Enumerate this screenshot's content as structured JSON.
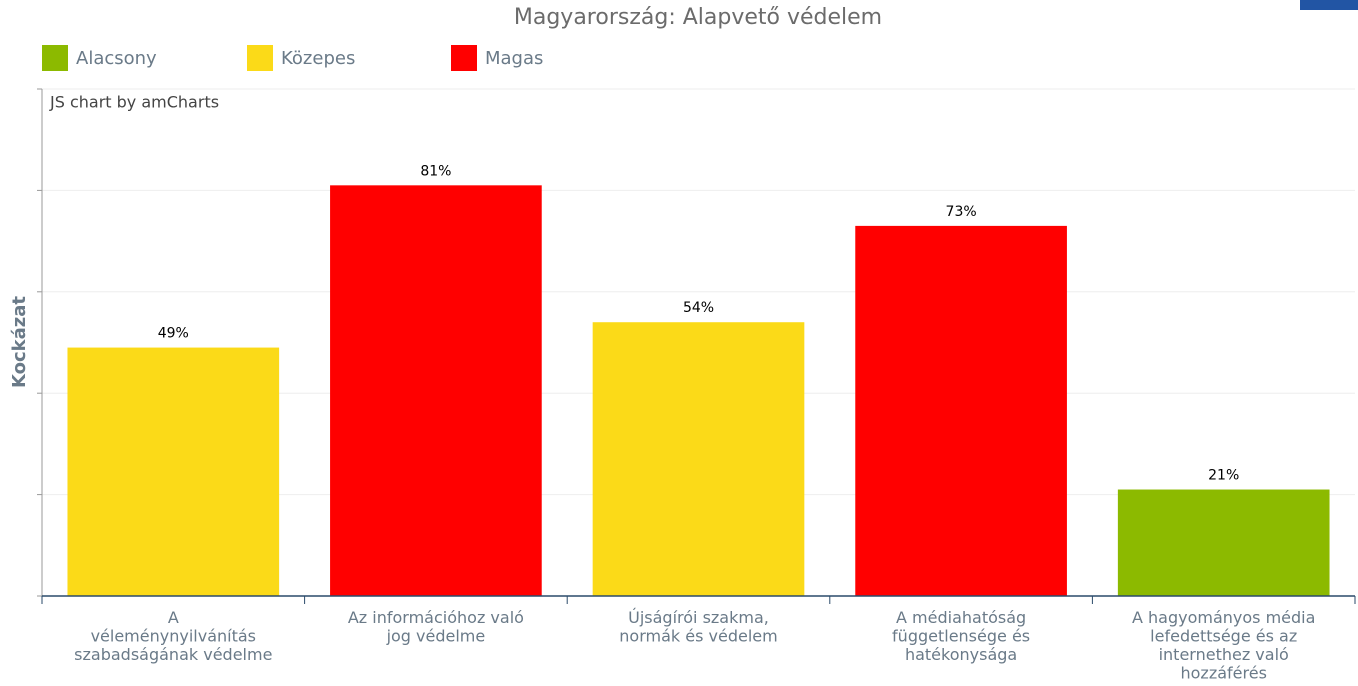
{
  "chart_data": {
    "type": "bar",
    "title": "Magyarország: Alapvető védelem",
    "credit": "JS chart by amCharts",
    "y_label": "Kockázat",
    "legend": [
      {
        "name": "Alacsony",
        "color": "#8cba00"
      },
      {
        "name": "Közepes",
        "color": "#fbda18"
      },
      {
        "name": "Magas",
        "color": "#ff0000"
      }
    ],
    "categories": [
      "A\nvéleménynyilvánítás\nszabadságának védelme",
      "Az információhoz való\njog védelme",
      "Újságírói szakma,\nnormák és védelem",
      "A médiahatóság\nfüggetlensége és\nhatékonysága",
      "A hagyományos média\nlefedettsége és az\ninternethez való\nhozzáférés"
    ],
    "values": [
      49,
      81,
      54,
      73,
      21
    ],
    "value_labels": [
      "49%",
      "81%",
      "54%",
      "73%",
      "21%"
    ],
    "colors": [
      "#fbda18",
      "#ff0000",
      "#fbda18",
      "#ff0000",
      "#8cba00"
    ],
    "ylim": [
      0,
      100
    ],
    "yticks": [
      0,
      20,
      40,
      60,
      80,
      100
    ],
    "grid": true
  }
}
